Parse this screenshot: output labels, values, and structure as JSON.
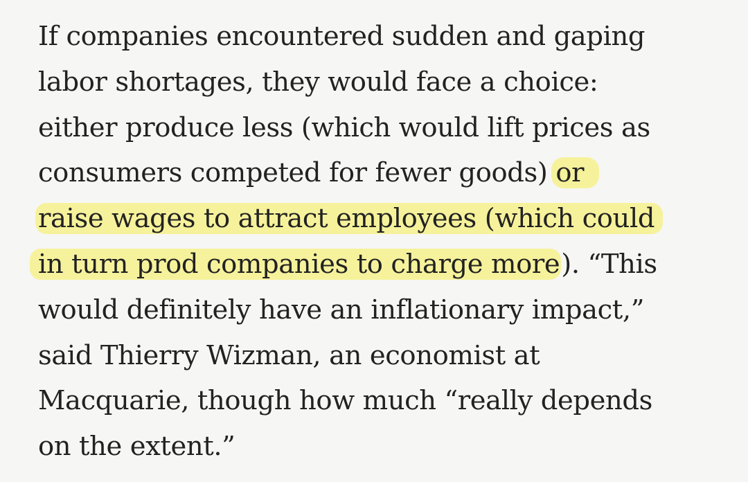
{
  "article": {
    "lines": [
      "If companies encountered sudden and gaping",
      "labor shortages, they would face a choice:",
      "either produce less (which would lift prices as",
      "consumers competed for fewer goods) or",
      "raise wages to attract employees (which could",
      "in turn prod companies to charge more). “This",
      "would definitely have an inflationary impact,”",
      "said Thierry Wizman, an economist at",
      "Macquarie, though how much “really depends",
      "on the extent.”"
    ],
    "line4_plain": "consumers competed for fewer goods) ",
    "line4_highlight": "or",
    "line6_highlight": "in turn prod companies to charge more",
    "line6_rest": "). “This",
    "highlight_color": "#f6f29c",
    "text_color": "#222222",
    "background_color": "#f6f6f4"
  }
}
